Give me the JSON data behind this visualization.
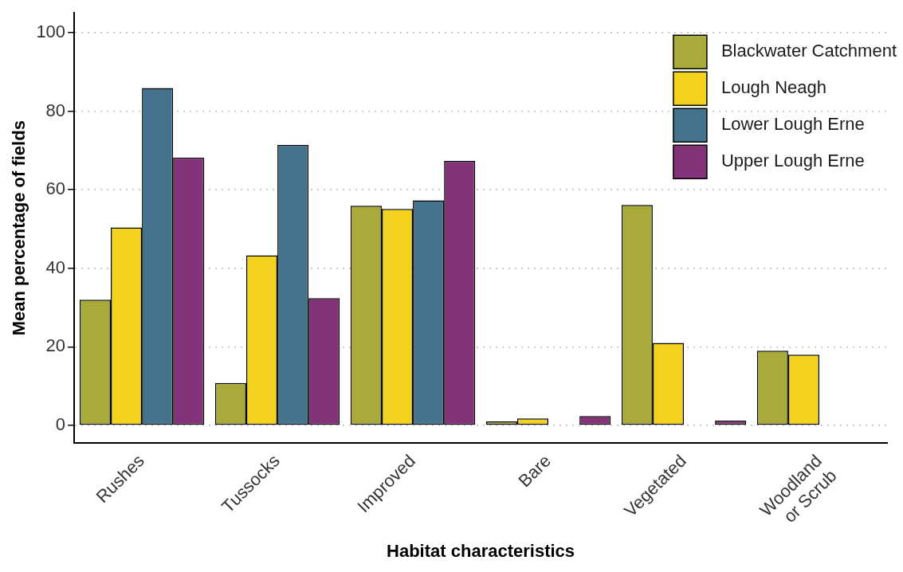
{
  "chart_data": {
    "type": "bar",
    "xlabel": "Habitat characteristics",
    "ylabel": "Mean percentage of fields",
    "categories": [
      "Rushes",
      "Tussocks",
      "Improved",
      "Bare",
      "Vegetated",
      "Woodland\nor Scrub"
    ],
    "series": [
      {
        "name": "Blackwater Catchment",
        "color": "#a8ab3a",
        "values": [
          32,
          10.8,
          55.9,
          1,
          56.1,
          19
        ]
      },
      {
        "name": "Lough Neagh",
        "color": "#f2d21e",
        "values": [
          50.4,
          43.3,
          55.1,
          1.8,
          21,
          18
        ]
      },
      {
        "name": "Lower Lough Erne",
        "color": "#44738e",
        "values": [
          85.9,
          71.4,
          57.3,
          0,
          0,
          0
        ]
      },
      {
        "name": "Upper Lough Erne",
        "color": "#84337a",
        "values": [
          68.2,
          32.4,
          67.3,
          2.4,
          1.2,
          0
        ]
      }
    ],
    "ylim": [
      -4.5,
      105
    ],
    "yticks": [
      0,
      20,
      40,
      60,
      80,
      100
    ],
    "grid": "y",
    "legend": "top right"
  }
}
